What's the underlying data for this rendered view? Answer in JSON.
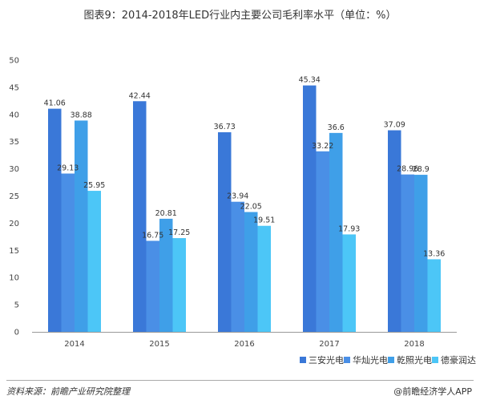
{
  "chart_data": {
    "type": "bar",
    "title": "图表9：2014-2018年LED行业内主要公司毛利率水平（单位：%）",
    "xlabel": "",
    "ylabel": "",
    "categories": [
      "2014",
      "2015",
      "2016",
      "2017",
      "2018"
    ],
    "yticks": [
      "0",
      "5",
      "10",
      "15",
      "20",
      "25",
      "30",
      "35",
      "40",
      "45",
      "50"
    ],
    "ylim": [
      0,
      50
    ],
    "grid": false,
    "legend_position": "bottom-right",
    "series": [
      {
        "name": "三安光电",
        "color": "#3a78d8",
        "values": [
          41.06,
          42.44,
          36.73,
          45.34,
          37.09
        ],
        "labels": [
          "41.06",
          "42.44",
          "36.73",
          "45.34",
          "37.09"
        ]
      },
      {
        "name": "华灿光电",
        "color": "#4a8fe6",
        "values": [
          29.13,
          16.75,
          23.94,
          33.22,
          28.96
        ],
        "labels": [
          "29.13",
          "16.75",
          "23.94",
          "33.22",
          "28.96"
        ]
      },
      {
        "name": "乾照光电",
        "color": "#3f9fe8",
        "values": [
          38.88,
          20.81,
          22.05,
          36.6,
          28.9
        ],
        "labels": [
          "38.88",
          "20.81",
          "22.05",
          "36.6",
          "28.9"
        ]
      },
      {
        "name": "德豪润达",
        "color": "#4cc6f7",
        "values": [
          25.95,
          17.25,
          19.51,
          17.93,
          13.36
        ],
        "labels": [
          "25.95",
          "17.25",
          "19.51",
          "17.93",
          "13.36"
        ]
      }
    ]
  },
  "footer": {
    "source": "资料来源：前瞻产业研究院整理",
    "credit": "@前瞻经济学人APP"
  }
}
